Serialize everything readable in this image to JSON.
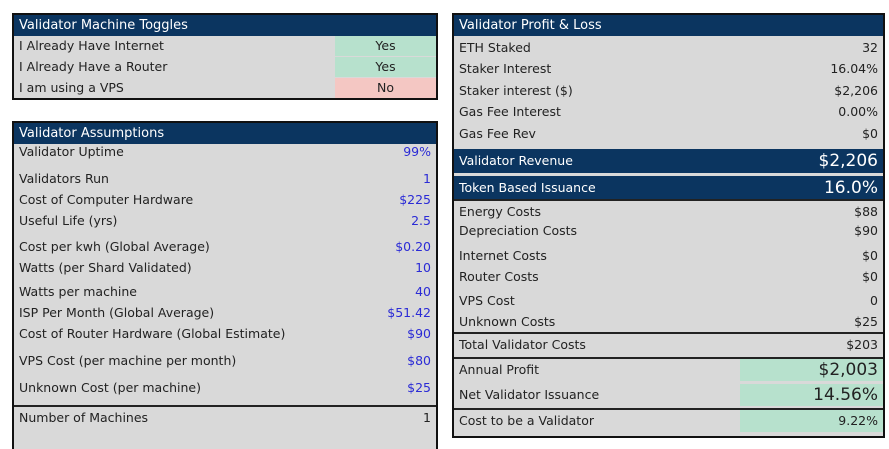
{
  "toggles": {
    "title": "Validator Machine Toggles",
    "rows": [
      {
        "label": "I Already Have Internet",
        "value": "Yes"
      },
      {
        "label": "I Already Have a Router",
        "value": "Yes"
      },
      {
        "label": "I am using a VPS",
        "value": "No"
      }
    ]
  },
  "assumptions": {
    "title": "Validator Assumptions",
    "rows": [
      {
        "label": "Validator Uptime",
        "value": "99%"
      },
      {
        "label": "Validators Run",
        "value": "1"
      },
      {
        "label": "Cost of Computer Hardware",
        "value": "$225"
      },
      {
        "label": "Useful Life (yrs)",
        "value": "2.5"
      },
      {
        "label": "Cost per kwh (Global Average)",
        "value": "$0.20"
      },
      {
        "label": "Watts (per Shard Validated)",
        "value": "10"
      },
      {
        "label": "Watts per machine",
        "value": "40"
      },
      {
        "label": "ISP Per Month (Global Average)",
        "value": "$51.42"
      },
      {
        "label": "Cost of Router Hardware (Global Estimate)",
        "value": "$90"
      },
      {
        "label": "VPS Cost (per machine per month)",
        "value": "$80"
      },
      {
        "label": "Unknown Cost (per machine)",
        "value": "$25"
      },
      {
        "label": "Number of Machines",
        "value": "1"
      }
    ]
  },
  "pnl": {
    "title": "Validator Profit & Loss",
    "rows": [
      {
        "label": "ETH Staked",
        "value": "32"
      },
      {
        "label": "Staker Interest",
        "value": "16.04%"
      },
      {
        "label": "Staker interest ($)",
        "value": "$2,206"
      },
      {
        "label": "Gas Fee Interest",
        "value": "0.00%"
      },
      {
        "label": "Gas Fee Rev",
        "value": "$0"
      },
      {
        "label": "Validator Revenue",
        "value": "$2,206"
      },
      {
        "label": "Token Based Issuance",
        "value": "16.0%"
      },
      {
        "label": "Energy Costs",
        "value": "$88"
      },
      {
        "label": "Depreciation Costs",
        "value": "$90"
      },
      {
        "label": "Internet Costs",
        "value": "$0"
      },
      {
        "label": "Router Costs",
        "value": "$0"
      },
      {
        "label": "VPS Cost",
        "value": "0"
      },
      {
        "label": "Unknown Costs",
        "value": "$25"
      },
      {
        "label": "Total Validator Costs",
        "value": "$203"
      },
      {
        "label": "Annual Profit",
        "value": "$2,003"
      },
      {
        "label": "Net Validator Issuance",
        "value": "14.56%"
      },
      {
        "label": "Cost to be a Validator",
        "value": "9.22%"
      }
    ]
  }
}
